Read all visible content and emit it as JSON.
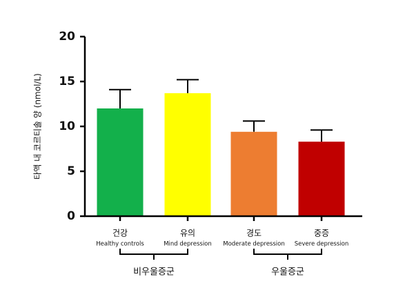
{
  "chart_data": {
    "type": "bar",
    "y_label": "타액 내 코르티솔 양 (nmol/L)",
    "categories": [
      "건강",
      "유의",
      "경도",
      "중증"
    ],
    "category_subtitles": [
      "Healthy controls",
      "Mind depression",
      "Moderate depression",
      "Severe depression"
    ],
    "values": [
      12.0,
      13.7,
      9.4,
      8.3
    ],
    "errors": [
      2.1,
      1.5,
      1.2,
      1.3
    ],
    "colors": [
      "#13b04b",
      "#ffff00",
      "#ed7d31",
      "#c00000"
    ],
    "ylim": [
      0,
      20
    ],
    "yticks": [
      0,
      5,
      10,
      15,
      20
    ],
    "groups": [
      {
        "label": "비우울증군",
        "members": [
          "건강",
          "유의"
        ]
      },
      {
        "label": "우울증군",
        "members": [
          "경도",
          "중증"
        ]
      }
    ]
  }
}
